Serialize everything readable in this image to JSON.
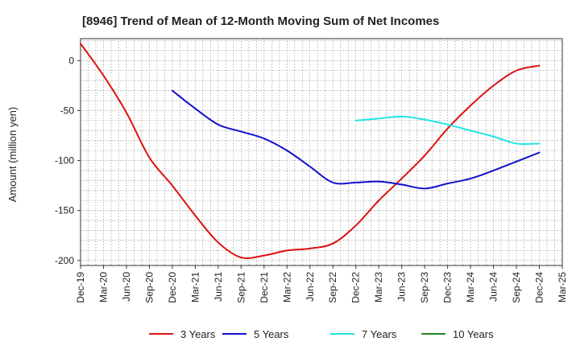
{
  "chart_data": {
    "type": "line",
    "title": "[8946]  Trend of Mean of 12-Month Moving Sum of Net Incomes",
    "xlabel": "",
    "ylabel": "Amount (million yen)",
    "x": [
      "Dec-19",
      "Mar-20",
      "Jun-20",
      "Sep-20",
      "Dec-20",
      "Mar-21",
      "Jun-21",
      "Sep-21",
      "Dec-21",
      "Mar-22",
      "Jun-22",
      "Sep-22",
      "Dec-22",
      "Mar-23",
      "Jun-23",
      "Sep-23",
      "Dec-23",
      "Mar-24",
      "Jun-24",
      "Sep-24",
      "Dec-24",
      "Mar-25"
    ],
    "ylim": [
      -205,
      22
    ],
    "yticks": [
      0,
      -50,
      -100,
      -150,
      -200
    ],
    "grid": true,
    "legend_position": "bottom",
    "series": [
      {
        "name": "3 Years",
        "color": "#dd1111",
        "values": [
          17,
          -15,
          -52,
          -97,
          -125,
          -155,
          -182,
          -197,
          -195,
          -190,
          -188,
          -183,
          -165,
          -140,
          -118,
          -95,
          -68,
          -45,
          -25,
          -10,
          -5,
          null
        ]
      },
      {
        "name": "5 Years",
        "color": "#1111cc",
        "values": [
          null,
          null,
          null,
          null,
          -30,
          -48,
          -64,
          -71,
          -78,
          -90,
          -106,
          -122,
          -122,
          -121,
          -124,
          -128,
          -123,
          -118,
          -110,
          -101,
          -92,
          null
        ]
      },
      {
        "name": "7 Years",
        "color": "#22e5e5",
        "values": [
          null,
          null,
          null,
          null,
          null,
          null,
          null,
          null,
          null,
          null,
          null,
          null,
          -60,
          -58,
          -56,
          -59,
          -64,
          -70,
          -76,
          -83,
          -83,
          null
        ]
      },
      {
        "name": "10 Years",
        "color": "#228822",
        "values": [
          null,
          null,
          null,
          null,
          null,
          null,
          null,
          null,
          null,
          null,
          null,
          null,
          null,
          null,
          null,
          null,
          null,
          null,
          null,
          null,
          null,
          null
        ]
      }
    ]
  }
}
